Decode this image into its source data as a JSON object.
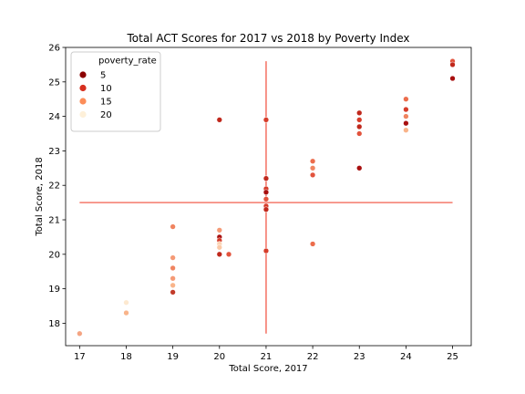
{
  "chart_data": {
    "type": "scatter",
    "title": "Total ACT Scores for 2017 vs 2018 by Poverty Index",
    "xlabel": "Total Score, 2017",
    "ylabel": "Total Score, 2018",
    "xlim": [
      16.7,
      25.4
    ],
    "ylim": [
      17.35,
      26.0
    ],
    "xticks": [
      "17",
      "18",
      "19",
      "20",
      "21",
      "22",
      "23",
      "24",
      "25"
    ],
    "yticks": [
      "18",
      "19",
      "20",
      "21",
      "22",
      "23",
      "24",
      "25",
      "26"
    ],
    "grid": false,
    "legend": {
      "title": "poverty_rate",
      "placement": "top-left",
      "entries": [
        {
          "label": "5",
          "color": "#8b0000"
        },
        {
          "label": "10",
          "color": "#d7301f"
        },
        {
          "label": "15",
          "color": "#fc8d59"
        },
        {
          "label": "20",
          "color": "#fef0d9"
        }
      ]
    },
    "reference_lines": {
      "color": "#f4796b",
      "vertical_x": 21.0,
      "vertical_y_range": [
        17.7,
        25.6
      ],
      "horizontal_y": 21.5,
      "horizontal_x_range": [
        17.0,
        25.0
      ]
    },
    "points": [
      {
        "x": 17,
        "y": 17.7,
        "color": "#f4a482"
      },
      {
        "x": 18,
        "y": 18.6,
        "color": "#fde9d0"
      },
      {
        "x": 18,
        "y": 18.3,
        "color": "#f9b48a"
      },
      {
        "x": 19,
        "y": 20.8,
        "color": "#f08460"
      },
      {
        "x": 19,
        "y": 19.9,
        "color": "#f59a76"
      },
      {
        "x": 19,
        "y": 19.6,
        "color": "#f08460"
      },
      {
        "x": 19,
        "y": 19.3,
        "color": "#f59a76"
      },
      {
        "x": 19,
        "y": 19.1,
        "color": "#f9b48a"
      },
      {
        "x": 19,
        "y": 18.9,
        "color": "#c23b2a"
      },
      {
        "x": 20,
        "y": 23.9,
        "color": "#c0281c"
      },
      {
        "x": 20,
        "y": 20.7,
        "color": "#f59a76"
      },
      {
        "x": 20,
        "y": 20.5,
        "color": "#a80f0f"
      },
      {
        "x": 20,
        "y": 20.4,
        "color": "#d63c2a"
      },
      {
        "x": 20,
        "y": 20.3,
        "color": "#fbd3b4"
      },
      {
        "x": 20,
        "y": 20.2,
        "color": "#fbc9a7"
      },
      {
        "x": 20,
        "y": 20.0,
        "color": "#c0281c"
      },
      {
        "x": 20.2,
        "y": 20.0,
        "color": "#e2533d"
      },
      {
        "x": 21,
        "y": 23.9,
        "color": "#d63c2a"
      },
      {
        "x": 21,
        "y": 22.2,
        "color": "#c0281c"
      },
      {
        "x": 21,
        "y": 21.9,
        "color": "#d63c2a"
      },
      {
        "x": 21,
        "y": 21.8,
        "color": "#a80f0f"
      },
      {
        "x": 21,
        "y": 21.6,
        "color": "#e2533d"
      },
      {
        "x": 21,
        "y": 21.4,
        "color": "#d63c2a"
      },
      {
        "x": 21,
        "y": 21.3,
        "color": "#c0281c"
      },
      {
        "x": 21,
        "y": 20.1,
        "color": "#d63c2a"
      },
      {
        "x": 22,
        "y": 22.7,
        "color": "#ec6d4c"
      },
      {
        "x": 22,
        "y": 22.5,
        "color": "#f08460"
      },
      {
        "x": 22,
        "y": 22.3,
        "color": "#e2533d"
      },
      {
        "x": 22,
        "y": 20.3,
        "color": "#ec6d4c"
      },
      {
        "x": 23,
        "y": 24.1,
        "color": "#c0281c"
      },
      {
        "x": 23,
        "y": 23.9,
        "color": "#d63c2a"
      },
      {
        "x": 23,
        "y": 23.7,
        "color": "#c0281c"
      },
      {
        "x": 23,
        "y": 23.5,
        "color": "#e2533d"
      },
      {
        "x": 23,
        "y": 22.5,
        "color": "#a80f0f"
      },
      {
        "x": 24,
        "y": 24.5,
        "color": "#ec6d4c"
      },
      {
        "x": 24,
        "y": 24.2,
        "color": "#d63c2a"
      },
      {
        "x": 24,
        "y": 24.0,
        "color": "#f08460"
      },
      {
        "x": 24,
        "y": 23.8,
        "color": "#a80f0f"
      },
      {
        "x": 24,
        "y": 23.6,
        "color": "#f9b48a"
      },
      {
        "x": 25,
        "y": 25.6,
        "color": "#e2533d"
      },
      {
        "x": 25,
        "y": 25.5,
        "color": "#c0281c"
      },
      {
        "x": 25,
        "y": 25.1,
        "color": "#a80f0f"
      }
    ]
  }
}
